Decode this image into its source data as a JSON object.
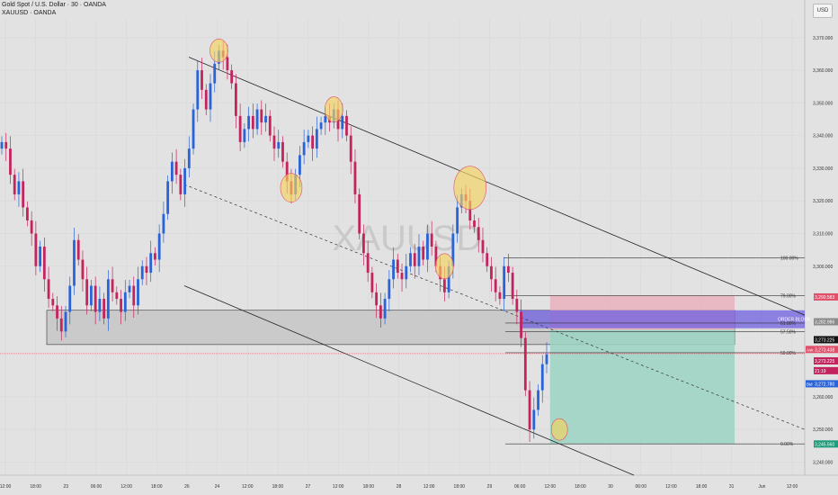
{
  "header": {
    "title": "Gold Spot / U.S. Dollar · 30 · OANDA",
    "subtitle": "XAUUSD · OANDA"
  },
  "toolbar": {
    "currency": "USD"
  },
  "watermark": "XAUUSD",
  "colors": {
    "up": "#2a63d8",
    "down": "#c4245e",
    "orderblock": "#6f5fe0",
    "profit_zone": "#9bd3c2",
    "loss_zone": "#eab1bd",
    "marker": "#f4d35e",
    "grid": "#d8d8d8",
    "bg": "#e2e2e2"
  },
  "chart_data": {
    "type": "candlestick",
    "symbol": "XAUUSD",
    "interval": "30",
    "ylim": [
      3236,
      3376
    ],
    "y_ticks": [
      {
        "value": 3370,
        "label": "3,370.000"
      },
      {
        "value": 3360,
        "label": "3,360.000"
      },
      {
        "value": 3350,
        "label": "3,350.000"
      },
      {
        "value": 3340,
        "label": "3,340.000"
      },
      {
        "value": 3330,
        "label": "3,330.000"
      },
      {
        "value": 3320,
        "label": "3,320.000"
      },
      {
        "value": 3310,
        "label": "3,310.000"
      },
      {
        "value": 3300,
        "label": "3,300.000"
      },
      {
        "value": 3260,
        "label": "3,260.000"
      },
      {
        "value": 3250,
        "label": "3,250.000"
      },
      {
        "value": 3240,
        "label": "3,240.000"
      }
    ],
    "x_ticks": [
      "12:00",
      "18:00",
      "23",
      "06:00",
      "12:00",
      "18:00",
      "26",
      "24",
      "12:00",
      "18:00",
      "27",
      "12:00",
      "18:00",
      "28",
      "12:00",
      "18:00",
      "29",
      "06:00",
      "12:00",
      "18:00",
      "30",
      "06:00",
      "12:00",
      "18:00",
      "31",
      "Jun",
      "12:00"
    ],
    "price_badges": [
      {
        "value": 3290.583,
        "label": "3,290.583",
        "color": "#e0506b"
      },
      {
        "value": 3282.986,
        "label": "3,282.986",
        "color": "#8a8a8a"
      },
      {
        "value": 3277.5,
        "label": "3,273.225",
        "color": "#111111"
      },
      {
        "value": 3274.5,
        "label": "3,273.438",
        "color": "#e0506b",
        "tag": "Ask"
      },
      {
        "value": 3271.0,
        "label": "3,273.225",
        "color": "#c4245e"
      },
      {
        "value": 3268.0,
        "label": "21:19",
        "color": "#c4245e"
      },
      {
        "value": 3264.0,
        "label": "3,272.780",
        "color": "#2a63d8",
        "tag": "Bid"
      },
      {
        "value": 3245.56,
        "label": "3,245.560",
        "color": "#1e9b7a"
      }
    ],
    "fib_levels": [
      {
        "ratio": "100.00%",
        "value": 3302.6
      },
      {
        "ratio": "79.00%",
        "value": 3291.0
      },
      {
        "ratio": "61.80%",
        "value": 3282.6
      },
      {
        "ratio": "57.50%",
        "value": 3280.0
      },
      {
        "ratio": "50.00%",
        "value": 3273.5
      },
      {
        "ratio": "0.00%",
        "value": 3245.6
      }
    ],
    "order_block_label": "ORDER BLOCK",
    "order_block": [
      3281.0,
      3286.5
    ],
    "position": {
      "entry": 3280.5,
      "stop": 3291.0,
      "target": 3245.6
    },
    "demand_zone": [
      3276.0,
      3286.5
    ],
    "current_price": 3273.225,
    "candles": [
      3338,
      3336,
      3328,
      3322,
      3326,
      3318,
      3314,
      3310,
      3300,
      3306,
      3296,
      3290,
      3288,
      3284,
      3280,
      3286,
      3294,
      3308,
      3302,
      3296,
      3288,
      3294,
      3286,
      3290,
      3284,
      3296,
      3292,
      3290,
      3286,
      3292,
      3294,
      3288,
      3296,
      3300,
      3298,
      3304,
      3302,
      3310,
      3316,
      3326,
      3332,
      3328,
      3322,
      3330,
      3336,
      3348,
      3360,
      3354,
      3348,
      3356,
      3362,
      3366,
      3364,
      3360,
      3356,
      3346,
      3338,
      3342,
      3346,
      3342,
      3348,
      3344,
      3346,
      3340,
      3336,
      3338,
      3332,
      3326,
      3322,
      3328,
      3334,
      3338,
      3340,
      3336,
      3342,
      3344,
      3346,
      3344,
      3348,
      3342,
      3346,
      3340,
      3332,
      3322,
      3310,
      3304,
      3298,
      3292,
      3288,
      3284,
      3290,
      3296,
      3302,
      3298,
      3296,
      3300,
      3304,
      3300,
      3306,
      3302,
      3310,
      3306,
      3300,
      3296,
      3292,
      3300,
      3310,
      3318,
      3322,
      3320,
      3314,
      3312,
      3308,
      3304,
      3300,
      3296,
      3292,
      3290,
      3300,
      3298,
      3290,
      3286,
      3278,
      3262,
      3250,
      3256,
      3262,
      3270,
      3273
    ],
    "markers": [
      {
        "label": "top-1"
      },
      {
        "label": "low-1"
      },
      {
        "label": "top-2"
      },
      {
        "label": "top-3"
      },
      {
        "label": "low-2"
      },
      {
        "label": "low-3"
      }
    ]
  }
}
